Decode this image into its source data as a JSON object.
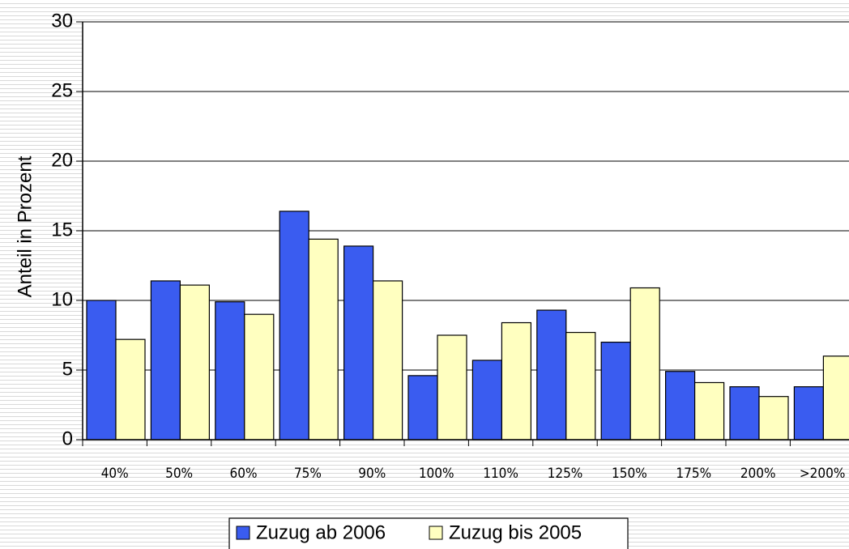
{
  "chart_data": {
    "type": "bar",
    "y_label": "Anteil in Prozent",
    "categories": [
      "40%",
      "50%",
      "60%",
      "75%",
      "90%",
      "100%",
      "110%",
      "125%",
      "150%",
      "175%",
      "200%",
      ">200%"
    ],
    "series": [
      {
        "name": "Zuzug ab 2006",
        "color": "#3a5cf0",
        "values": [
          10.0,
          11.4,
          9.9,
          16.4,
          13.9,
          4.6,
          5.7,
          9.3,
          7.0,
          4.9,
          3.8,
          3.8
        ]
      },
      {
        "name": "Zuzug bis 2005",
        "color": "#ffffc0",
        "values": [
          7.2,
          11.1,
          9.0,
          14.4,
          11.4,
          7.5,
          8.4,
          7.7,
          10.9,
          4.1,
          3.1,
          6.0
        ]
      }
    ],
    "ylim": [
      0,
      30
    ],
    "yticks": [
      0,
      5,
      10,
      15,
      20,
      25,
      30
    ],
    "grid": true,
    "legend": "bottom"
  }
}
